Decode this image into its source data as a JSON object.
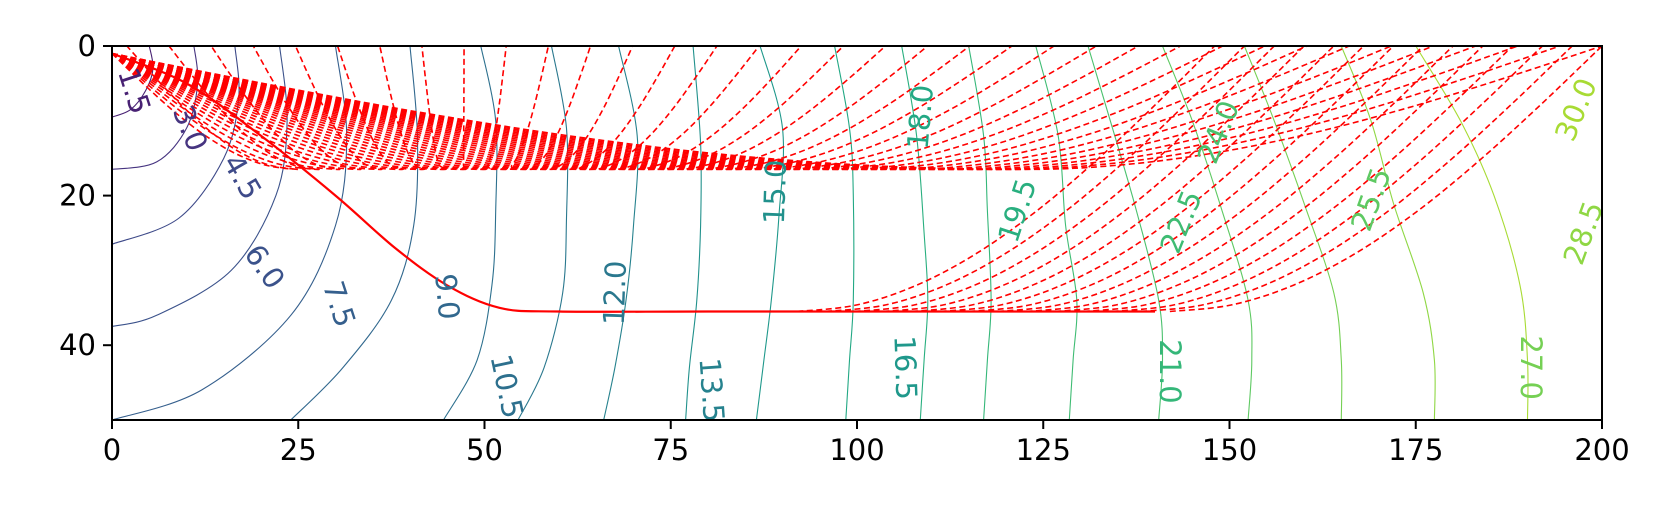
{
  "chart_data": {
    "type": "contour",
    "title": "",
    "xlabel": "",
    "ylabel": "",
    "xlim": [
      0,
      200
    ],
    "ylim": [
      50,
      0
    ],
    "y_axis_inverted": true,
    "grid": false,
    "legend": "none",
    "x_ticks": [
      0,
      25,
      50,
      75,
      100,
      125,
      150,
      175,
      200
    ],
    "x_tick_labels": [
      "0",
      "25",
      "50",
      "75",
      "100",
      "125",
      "150",
      "175",
      "200"
    ],
    "y_ticks": [
      0,
      20,
      40
    ],
    "y_tick_labels": [
      "0",
      "20",
      "40"
    ],
    "contour_levels": [
      {
        "level": 1.5,
        "label": "1.5",
        "color": "#482173",
        "points": [
          [
            5,
            0
          ],
          [
            5.5,
            3
          ],
          [
            4.5,
            6
          ],
          [
            2.5,
            8.5
          ],
          [
            0,
            9.5
          ]
        ]
      },
      {
        "level": 3.0,
        "label": "3.0",
        "color": "#463480",
        "points": [
          [
            11,
            0
          ],
          [
            11.5,
            5
          ],
          [
            10,
            11
          ],
          [
            6,
            15.5
          ],
          [
            0,
            16.5
          ]
        ]
      },
      {
        "level": 4.5,
        "label": "4.5",
        "color": "#3e4a89",
        "points": [
          [
            16.5,
            0
          ],
          [
            17,
            7
          ],
          [
            15,
            15
          ],
          [
            9,
            23
          ],
          [
            0,
            26.5
          ]
        ]
      },
      {
        "level": 6.0,
        "label": "6.0",
        "color": "#3b528b",
        "points": [
          [
            22.5,
            0
          ],
          [
            23.5,
            10
          ],
          [
            22,
            20
          ],
          [
            16,
            30
          ],
          [
            6,
            36
          ],
          [
            0,
            37.5
          ]
        ]
      },
      {
        "level": 7.5,
        "label": "7.5",
        "color": "#355f8d",
        "points": [
          [
            30,
            0
          ],
          [
            31.5,
            12
          ],
          [
            30,
            24
          ],
          [
            24,
            36
          ],
          [
            12,
            46
          ],
          [
            0,
            50
          ]
        ]
      },
      {
        "level": 9.0,
        "label": "9.0",
        "color": "#31688e",
        "points": [
          [
            40,
            0
          ],
          [
            41,
            12
          ],
          [
            40.5,
            24
          ],
          [
            37.5,
            34
          ],
          [
            31,
            43
          ],
          [
            24,
            50
          ]
        ]
      },
      {
        "level": 10.5,
        "label": "10.5",
        "color": "#2d708e",
        "points": [
          [
            49.5,
            0
          ],
          [
            51.5,
            10
          ],
          [
            51.5,
            22
          ],
          [
            51,
            32
          ],
          [
            49,
            42
          ],
          [
            44.5,
            50
          ]
        ]
      },
      {
        "level": 12.0,
        "label": "12.0",
        "color": "#2a788e",
        "points": [
          [
            59,
            0
          ],
          [
            61,
            11
          ],
          [
            61,
            23
          ],
          [
            60.5,
            33
          ],
          [
            58,
            43
          ],
          [
            54.5,
            50
          ]
        ]
      },
      {
        "level": 13.5,
        "label": "13.5",
        "color": "#26828e",
        "points": [
          [
            68,
            0
          ],
          [
            70.5,
            12
          ],
          [
            70,
            24
          ],
          [
            69,
            34
          ],
          [
            67.5,
            43
          ],
          [
            66,
            50
          ]
        ]
      },
      {
        "level": 15.0,
        "label": "15.0",
        "color": "#21918c",
        "points": [
          [
            78,
            0
          ],
          [
            79,
            13
          ],
          [
            79,
            24
          ],
          [
            78.5,
            34
          ],
          [
            77.5,
            43
          ],
          [
            77,
            50
          ]
        ]
      },
      {
        "level": 16.5,
        "label": "16.5",
        "color": "#1f988b",
        "points": [
          [
            87,
            0
          ],
          [
            90,
            11
          ],
          [
            89.5,
            23
          ],
          [
            88.5,
            34
          ],
          [
            87.5,
            42
          ],
          [
            86.5,
            50
          ]
        ]
      },
      {
        "level": 18.0,
        "label": "18.0",
        "color": "#22a884",
        "points": [
          [
            97,
            0
          ],
          [
            99,
            11
          ],
          [
            99.5,
            20
          ],
          [
            99.5,
            34
          ],
          [
            99,
            42
          ],
          [
            98.5,
            50
          ]
        ]
      },
      {
        "level": 19.5,
        "label": "19.5",
        "color": "#29af7f",
        "points": [
          [
            106,
            0
          ],
          [
            108,
            12
          ],
          [
            109,
            25
          ],
          [
            109.5,
            34
          ],
          [
            109,
            42
          ],
          [
            108.5,
            50
          ]
        ]
      },
      {
        "level": 21.0,
        "label": "21.0",
        "color": "#35b779",
        "points": [
          [
            115,
            0
          ],
          [
            117,
            12
          ],
          [
            117.5,
            22
          ],
          [
            118,
            34
          ],
          [
            117.5,
            42
          ],
          [
            117,
            50
          ]
        ]
      },
      {
        "level": 22.5,
        "label": "22.5",
        "color": "#3fbc73",
        "points": [
          [
            124,
            0
          ],
          [
            127,
            12
          ],
          [
            128,
            24
          ],
          [
            129.5,
            34
          ],
          [
            129,
            42
          ],
          [
            128.5,
            50
          ]
        ]
      },
      {
        "level": 24.0,
        "label": "24.0",
        "color": "#4ac16d",
        "points": [
          [
            131,
            0
          ],
          [
            134,
            10
          ],
          [
            137.5,
            22
          ],
          [
            140.5,
            34
          ],
          [
            141,
            42
          ],
          [
            140.5,
            50
          ]
        ]
      },
      {
        "level": 25.5,
        "label": "25.5",
        "color": "#5ec962",
        "points": [
          [
            141,
            0
          ],
          [
            145,
            10
          ],
          [
            149,
            22
          ],
          [
            152.5,
            34
          ],
          [
            153,
            42
          ],
          [
            152.5,
            50
          ]
        ]
      },
      {
        "level": 27.0,
        "label": "27.0",
        "color": "#75d054",
        "points": [
          [
            152,
            0
          ],
          [
            156,
            10
          ],
          [
            160,
            21
          ],
          [
            164,
            33
          ],
          [
            165,
            42
          ],
          [
            165,
            50
          ]
        ]
      },
      {
        "level": 28.5,
        "label": "28.5",
        "color": "#8fd744",
        "points": [
          [
            165,
            0
          ],
          [
            169,
            10
          ],
          [
            172,
            21
          ],
          [
            176,
            33
          ],
          [
            177.5,
            42
          ],
          [
            177.5,
            50
          ]
        ]
      },
      {
        "level": 30.0,
        "label": "30.0",
        "color": "#a8db34",
        "points": [
          [
            175,
            0
          ],
          [
            181,
            10
          ],
          [
            185.5,
            20
          ],
          [
            189,
            32
          ],
          [
            190,
            42
          ],
          [
            190,
            50
          ]
        ]
      }
    ],
    "contour_labels": [
      {
        "text": "1.5",
        "x": 3,
        "y": 6,
        "rotation": 72,
        "color": "#482173"
      },
      {
        "text": "3.0",
        "x": 10.5,
        "y": 11,
        "rotation": 68,
        "color": "#463480"
      },
      {
        "text": "4.5",
        "x": 17.5,
        "y": 17.5,
        "rotation": 60,
        "color": "#3e4a89"
      },
      {
        "text": "6.0",
        "x": 20.5,
        "y": 29.5,
        "rotation": 55,
        "color": "#3b528b"
      },
      {
        "text": "7.5",
        "x": 30.5,
        "y": 34.5,
        "rotation": 72,
        "color": "#355f8d"
      },
      {
        "text": "9.0",
        "x": 45,
        "y": 33.5,
        "rotation": 85,
        "color": "#31688e"
      },
      {
        "text": "10.5",
        "x": 53,
        "y": 45.5,
        "rotation": 78,
        "color": "#2d708e"
      },
      {
        "text": "12.0",
        "x": 67.5,
        "y": 33,
        "rotation": -88,
        "color": "#2a788e"
      },
      {
        "text": "13.5",
        "x": 80.5,
        "y": 46,
        "rotation": 86,
        "color": "#26828e"
      },
      {
        "text": "15.0",
        "x": 89,
        "y": 19.5,
        "rotation": -88,
        "color": "#21918c"
      },
      {
        "text": "16.5",
        "x": 106.5,
        "y": 43,
        "rotation": 88,
        "color": "#1f988b"
      },
      {
        "text": "18.0",
        "x": 108.5,
        "y": 9.5,
        "rotation": -85,
        "color": "#22a884"
      },
      {
        "text": "19.5",
        "x": 121.5,
        "y": 22,
        "rotation": -72,
        "color": "#29af7f"
      },
      {
        "text": "21.0",
        "x": 142,
        "y": 43.5,
        "rotation": 90,
        "color": "#35b779"
      },
      {
        "text": "22.5",
        "x": 143.5,
        "y": 23.5,
        "rotation": -68,
        "color": "#3fbc73"
      },
      {
        "text": "24.0",
        "x": 148.5,
        "y": 11.5,
        "rotation": -68,
        "color": "#4ac16d"
      },
      {
        "text": "25.5",
        "x": 169,
        "y": 20.5,
        "rotation": -70,
        "color": "#5ec962"
      },
      {
        "text": "27.0",
        "x": 190.5,
        "y": 43,
        "rotation": 90,
        "color": "#75d054"
      },
      {
        "text": "28.5",
        "x": 197.5,
        "y": 25,
        "rotation": -70,
        "color": "#8fd744"
      },
      {
        "text": "30.0",
        "x": 196.5,
        "y": 8.5,
        "rotation": -68,
        "color": "#a8db34"
      }
    ],
    "solid_curve": {
      "color": "#ff0000",
      "points": [
        [
          0,
          1
        ],
        [
          10,
          5
        ],
        [
          20,
          12
        ],
        [
          30,
          20
        ],
        [
          38,
          27
        ],
        [
          45,
          32
        ],
        [
          52,
          35
        ],
        [
          60,
          35.5
        ],
        [
          80,
          35.5
        ],
        [
          110,
          35.5
        ],
        [
          140,
          35.5
        ]
      ]
    },
    "ray_color": "#ff0000",
    "rays_upper": {
      "count": 36,
      "source": [
        0,
        1
      ],
      "start_x": [
        2,
        200
      ],
      "turn_x": [
        25,
        122
      ],
      "turn_depth": 16.5
    },
    "rays_lower": {
      "count": 14,
      "turn_x": [
        92,
        142
      ],
      "end_x": [
        148,
        200
      ],
      "turn_depth": 35.5
    }
  }
}
